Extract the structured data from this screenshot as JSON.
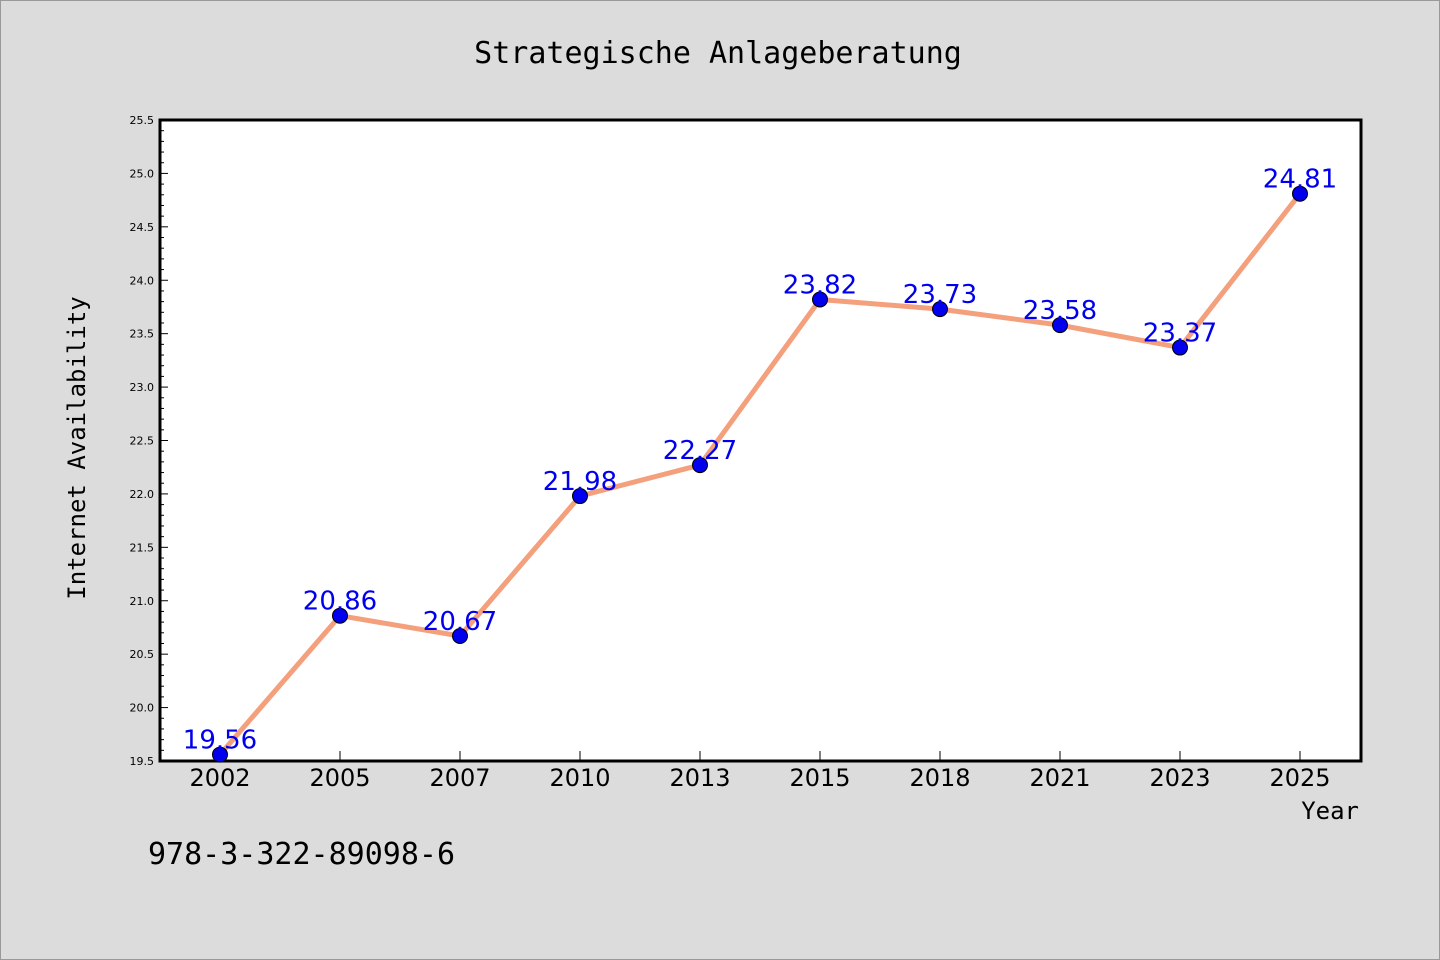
{
  "chart_data": {
    "type": "line",
    "title": "Strategische Anlageberatung",
    "xlabel": "Year",
    "ylabel": "Internet Availability",
    "categories": [
      "2002",
      "2005",
      "2007",
      "2010",
      "2013",
      "2015",
      "2018",
      "2021",
      "2023",
      "2025"
    ],
    "series": [
      {
        "values": [
          19.56,
          20.86,
          20.67,
          21.98,
          22.27,
          23.82,
          23.73,
          23.58,
          23.37,
          24.81
        ]
      }
    ],
    "data_labels": [
      "19.56",
      "20.86",
      "20.67",
      "21.98",
      "22.27",
      "23.82",
      "23.73",
      "23.58",
      "23.37",
      "24.81"
    ],
    "ylim": [
      19.5,
      25.5
    ],
    "yticks": [
      "19.5",
      "20.0",
      "20.5",
      "21.0",
      "21.5",
      "22.0",
      "22.5",
      "23.0",
      "23.5",
      "24.0",
      "24.5",
      "25.0",
      "25.5"
    ],
    "grid": false,
    "legend": "none",
    "colors": {
      "line": "#f4a07c",
      "marker": "#0000ee",
      "label": "#0000ee",
      "background": "#dcdcdc",
      "plot_background": "#ffffff"
    }
  },
  "footnote": "978-3-322-89098-6"
}
